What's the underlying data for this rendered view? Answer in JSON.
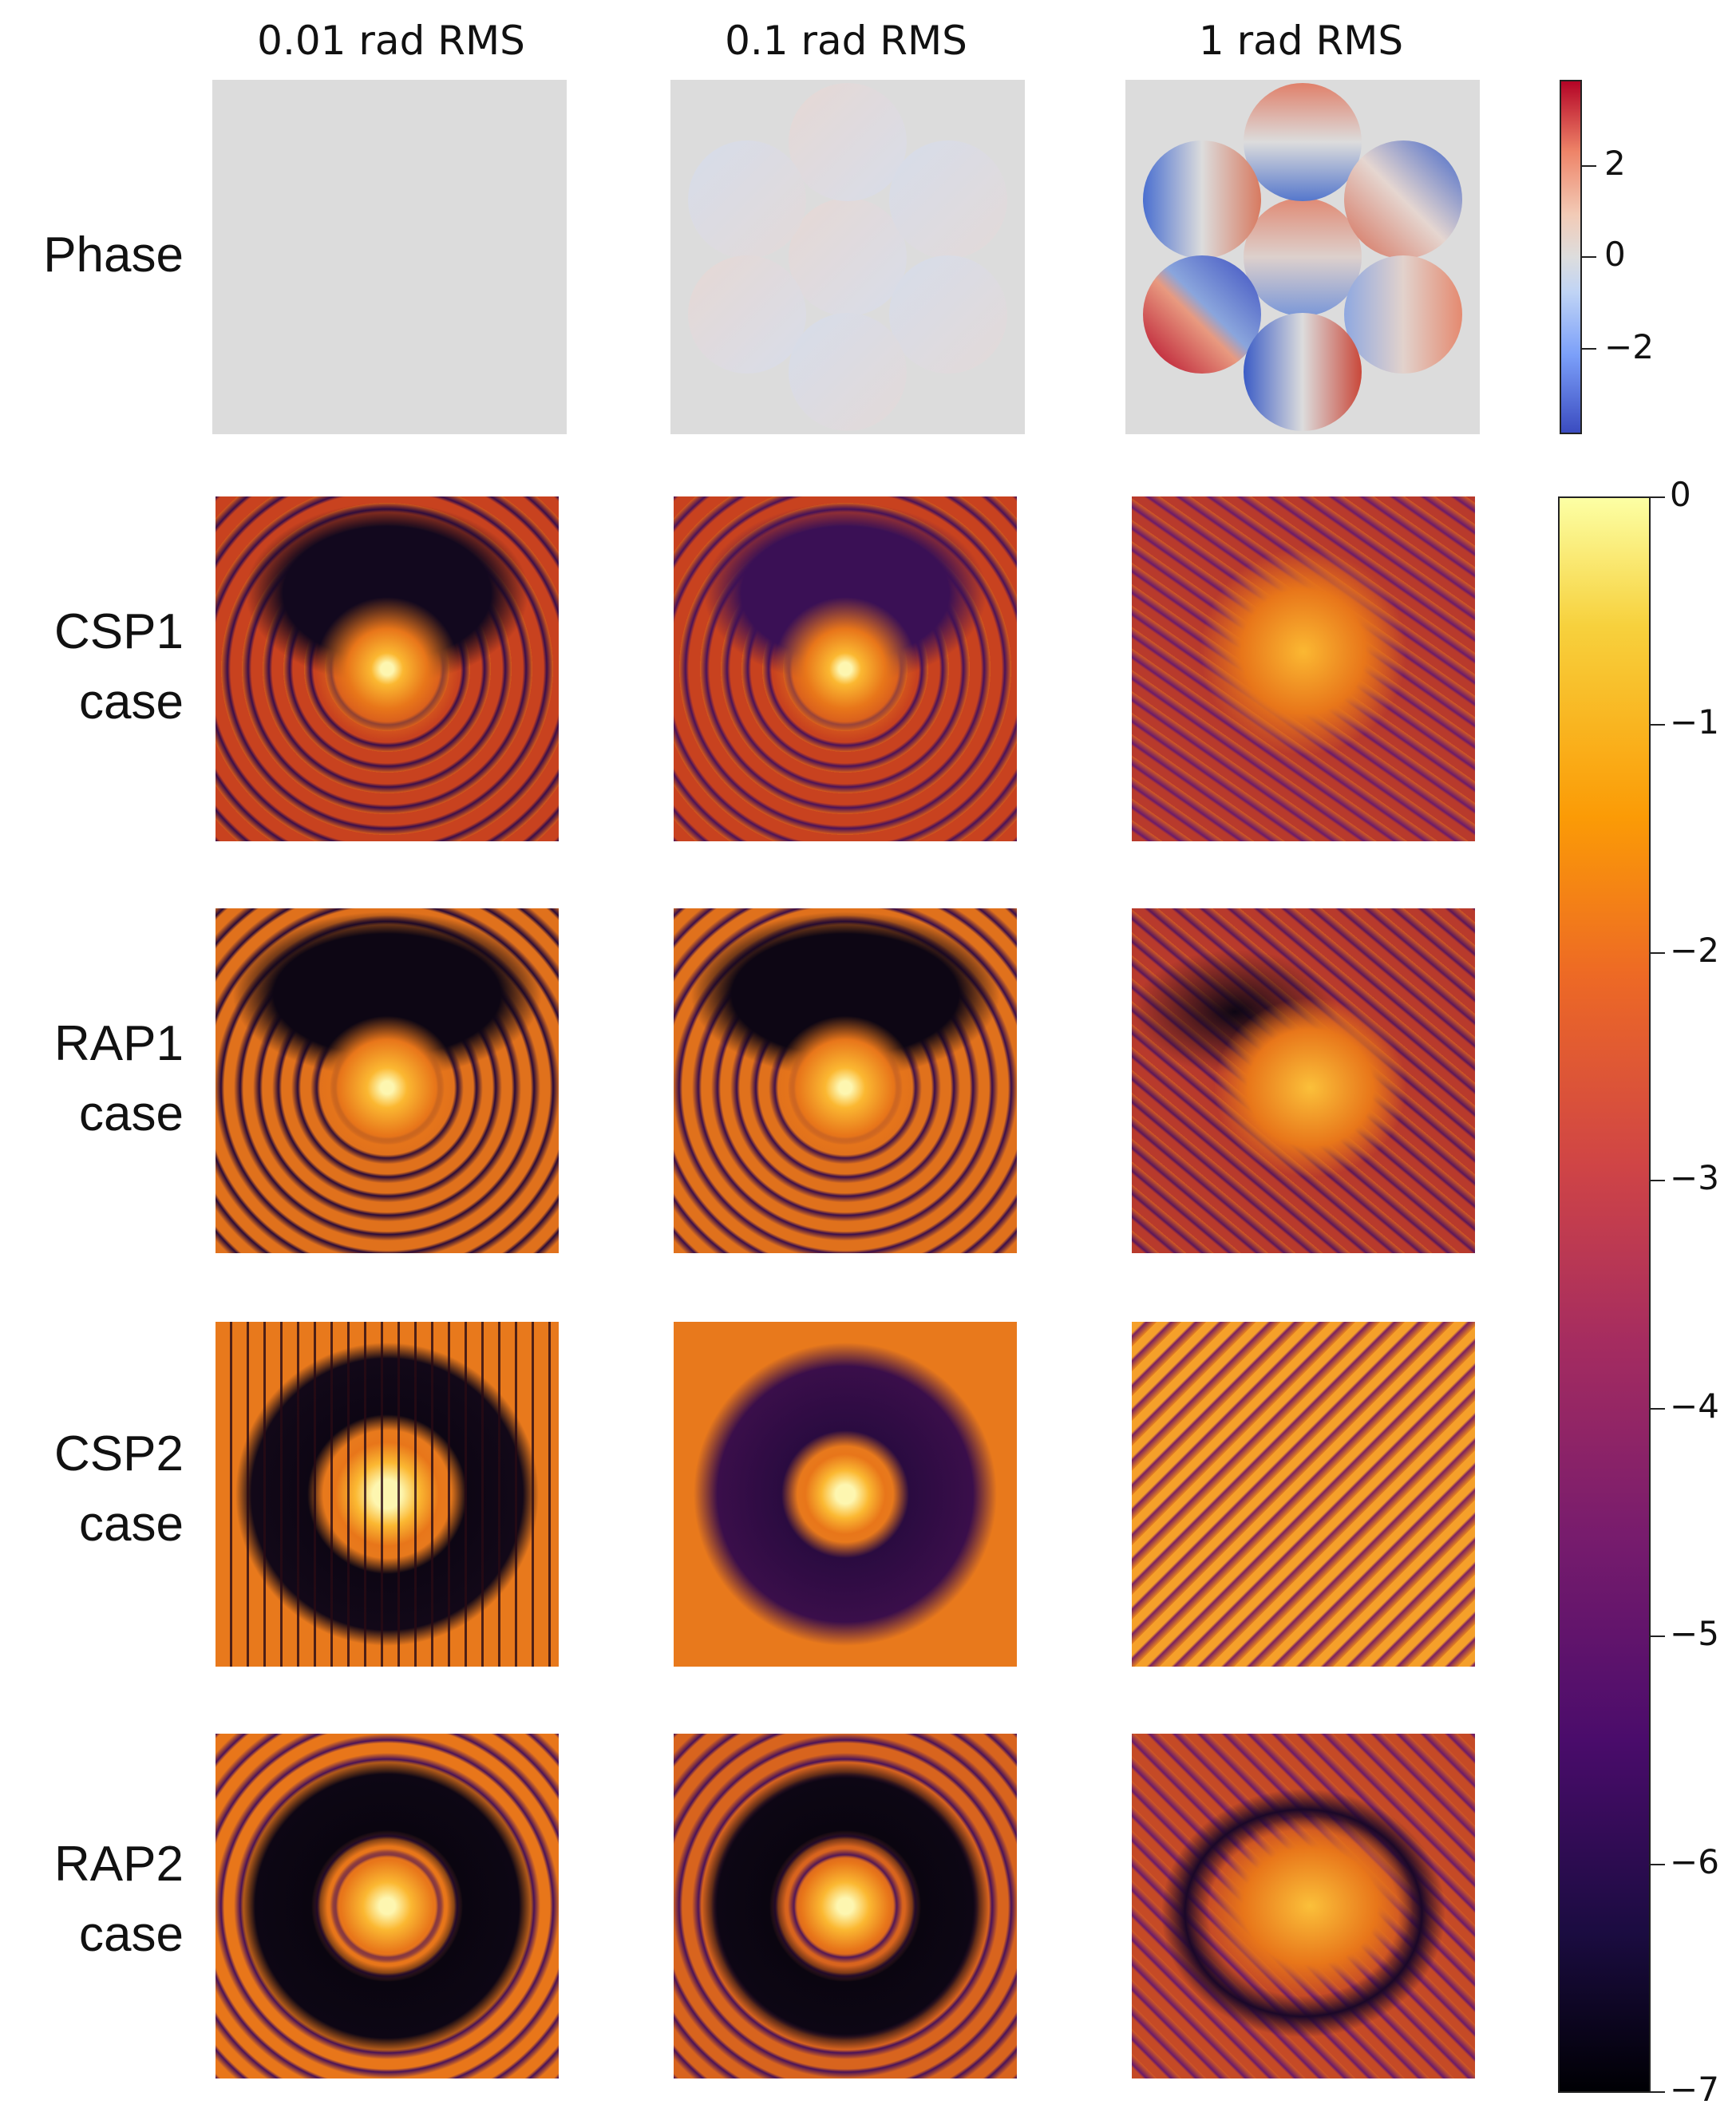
{
  "columns": {
    "col1": "0.01 rad RMS",
    "col2": "0.1 rad RMS",
    "col3": "1 rad RMS"
  },
  "rows": {
    "phase": {
      "line1": "Phase"
    },
    "csp1": {
      "line1": "CSP1",
      "line2": "case"
    },
    "rap1": {
      "line1": "RAP1",
      "line2": "case"
    },
    "csp2": {
      "line1": "CSP2",
      "line2": "case"
    },
    "rap2": {
      "line1": "RAP2",
      "line2": "case"
    }
  },
  "phase_colorbar": {
    "colormap": "coolwarm",
    "range": [
      -3.6,
      3.6
    ],
    "ticks": [
      "2",
      "0",
      "−2"
    ]
  },
  "psf_colorbar": {
    "colormap": "inferno",
    "range": [
      -7,
      0
    ],
    "ticks": [
      "0",
      "−1",
      "−2",
      "−3",
      "−4",
      "−5",
      "−6",
      "−7"
    ]
  }
}
